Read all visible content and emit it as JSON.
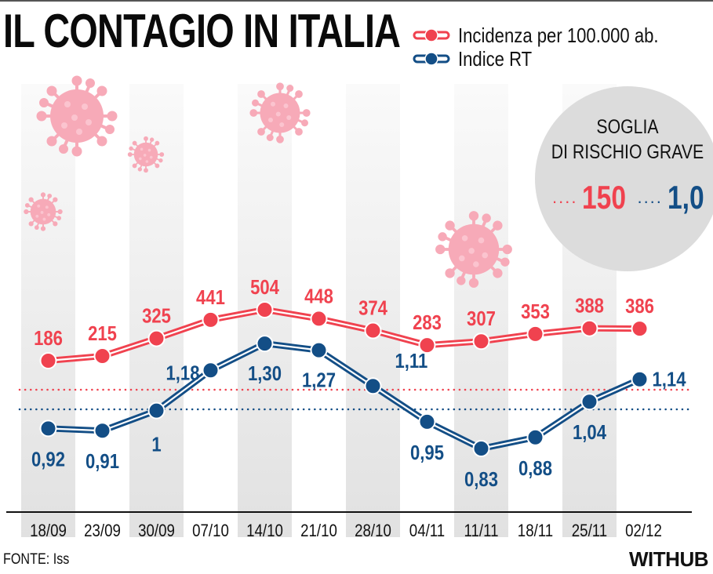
{
  "header": {
    "title": "IL CONTAGIO IN ITALIA"
  },
  "legend": [
    {
      "label": "Incidenza per 100.000 ab.",
      "color": "#f0424f"
    },
    {
      "label": "Indice RT",
      "color": "#134e86"
    }
  ],
  "risk_box": {
    "title_line1": "SOGLIA",
    "title_line2": "DI RISCHIO GRAVE",
    "incidence_threshold": "150",
    "rt_threshold": "1,0",
    "dots": "...."
  },
  "footer": {
    "source": "FONTE: Iss",
    "logo": "WITHUB"
  },
  "colors": {
    "incidence": "#f0424f",
    "rt": "#134e86",
    "stripe": "#e4e4e4",
    "virus": "#f7aab8"
  },
  "chart_data": {
    "type": "line",
    "title": "IL CONTAGIO IN ITALIA",
    "categories": [
      "18/09",
      "23/09",
      "30/09",
      "07/10",
      "14/10",
      "21/10",
      "28/10",
      "04/11",
      "11/11",
      "18/11",
      "25/11",
      "02/12"
    ],
    "series": [
      {
        "name": "Incidenza per 100.000 ab.",
        "values": [
          186,
          215,
          325,
          441,
          504,
          448,
          374,
          283,
          307,
          353,
          388,
          386
        ],
        "labels": [
          "186",
          "215",
          "325",
          "441",
          "504",
          "448",
          "374",
          "283",
          "307",
          "353",
          "388",
          "386"
        ]
      },
      {
        "name": "Indice RT",
        "values": [
          0.92,
          0.91,
          1.0,
          1.18,
          1.3,
          1.27,
          1.11,
          0.95,
          0.83,
          0.88,
          1.04,
          1.14
        ],
        "labels": [
          "0,92",
          "0,91",
          "1",
          "1,18",
          "1,30",
          "1,27",
          "1,11",
          "0,95",
          "0,83",
          "0,88",
          "1,04",
          "1,14"
        ]
      }
    ],
    "thresholds": [
      {
        "series": "Incidenza per 100.000 ab.",
        "value": 150,
        "style": "dotted"
      },
      {
        "series": "Indice RT",
        "value": 1.0,
        "style": "dotted"
      }
    ],
    "source": "FONTE: Iss",
    "grid": false,
    "legend": "top-right"
  }
}
